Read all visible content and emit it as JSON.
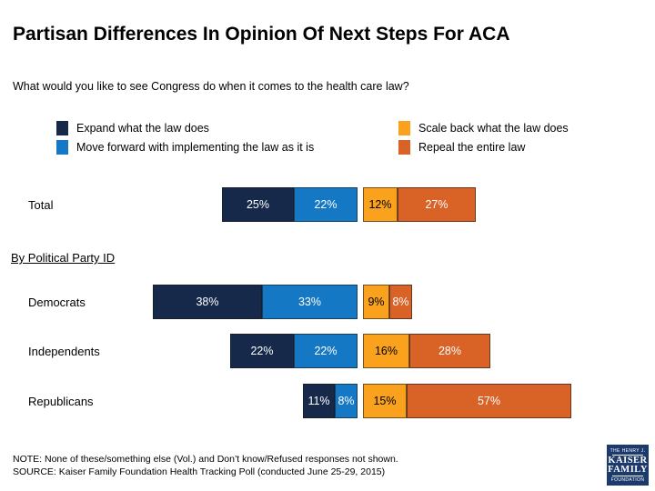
{
  "page": {
    "title": "Partisan Differences In Opinion Of Next Steps For ACA",
    "subtitle": "What would you like to see Congress do when it comes to the health care law?",
    "section_label": "By Political Party ID",
    "note": "NOTE: None of these/something else (Vol.) and Don’t know/Refused responses not shown.",
    "source": "SOURCE: Kaiser Family Foundation Health Tracking Poll (conducted June 25-29, 2015)"
  },
  "logo": {
    "line1": "THE HENRY J.",
    "line2": "KAISER",
    "line3": "FAMILY",
    "line4": "FOUNDATION",
    "bg_color": "#1d3a6d"
  },
  "chart_data": {
    "type": "bar",
    "variant": "diverging-stacked-horizontal",
    "title": "Partisan Differences In Opinion Of Next Steps For ACA",
    "question": "What would you like to see Congress do when it comes to the health care law?",
    "categories": [
      "Total",
      "Democrats",
      "Independents",
      "Republicans"
    ],
    "series": [
      {
        "id": "expand",
        "name": "Expand what the law does",
        "side": "left",
        "color": "#16294b",
        "label_color": "#ffffff",
        "values": [
          25,
          38,
          22,
          11
        ]
      },
      {
        "id": "move-forward",
        "name": "Move forward with implementing the law as it is",
        "side": "left",
        "color": "#1478c4",
        "label_color": "#ffffff",
        "values": [
          22,
          33,
          22,
          8
        ]
      },
      {
        "id": "scale-back",
        "name": "Scale back what the law does",
        "side": "right",
        "color": "#faa21d",
        "label_color": "#000000",
        "values": [
          12,
          9,
          16,
          15
        ]
      },
      {
        "id": "repeal",
        "name": "Repeal the entire law",
        "side": "right",
        "color": "#d96227",
        "label_color": "#ffffff",
        "values": [
          27,
          8,
          28,
          57
        ]
      }
    ],
    "value_suffix": "%",
    "axis_hidden": true,
    "grid": false,
    "legend_position": "top-two-columns"
  }
}
